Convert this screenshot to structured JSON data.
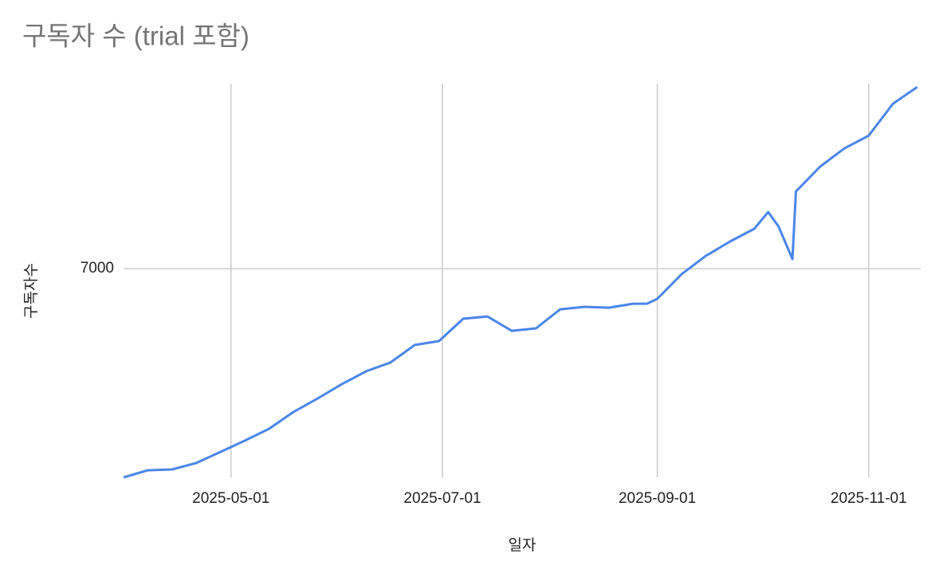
{
  "chart_data": {
    "type": "line",
    "title": "구독자 수 (trial 포함)",
    "x_label": "일자",
    "y_label": "구독자수",
    "x": [
      "2025-03-31",
      "2025-04-07",
      "2025-04-14",
      "2025-04-21",
      "2025-04-28",
      "2025-05-05",
      "2025-05-12",
      "2025-05-19",
      "2025-05-26",
      "2025-06-02",
      "2025-06-09",
      "2025-06-16",
      "2025-06-23",
      "2025-06-30",
      "2025-07-07",
      "2025-07-14",
      "2025-07-21",
      "2025-07-28",
      "2025-08-04",
      "2025-08-11",
      "2025-08-18",
      "2025-08-25",
      "2025-08-29",
      "2025-09-01",
      "2025-09-08",
      "2025-09-15",
      "2025-09-22",
      "2025-09-29",
      "2025-10-03",
      "2025-10-06",
      "2025-10-10",
      "2025-10-11",
      "2025-10-18",
      "2025-10-25",
      "2025-11-01",
      "2025-11-08",
      "2025-11-15"
    ],
    "series": [
      {
        "name": "구독자수",
        "color": "#4a86e8",
        "values": [
          6000,
          6034,
          6038,
          6069,
          6122,
          6176,
          6233,
          6313,
          6378,
          6447,
          6508,
          6550,
          6634,
          6653,
          6760,
          6771,
          6702,
          6714,
          6805,
          6817,
          6813,
          6832,
          6832,
          6855,
          6973,
          7061,
          7130,
          7191,
          7271,
          7202,
          7046,
          7370,
          7489,
          7576,
          7637,
          7790,
          7870
        ]
      }
    ],
    "xlim": [
      "2025-03-31",
      "2025-11-16"
    ],
    "xticks": [
      "2025-05-01",
      "2025-07-01",
      "2025-09-01",
      "2025-11-01"
    ],
    "ylim": [
      6000,
      7886
    ],
    "yticks": [
      7000
    ],
    "grid": true
  }
}
